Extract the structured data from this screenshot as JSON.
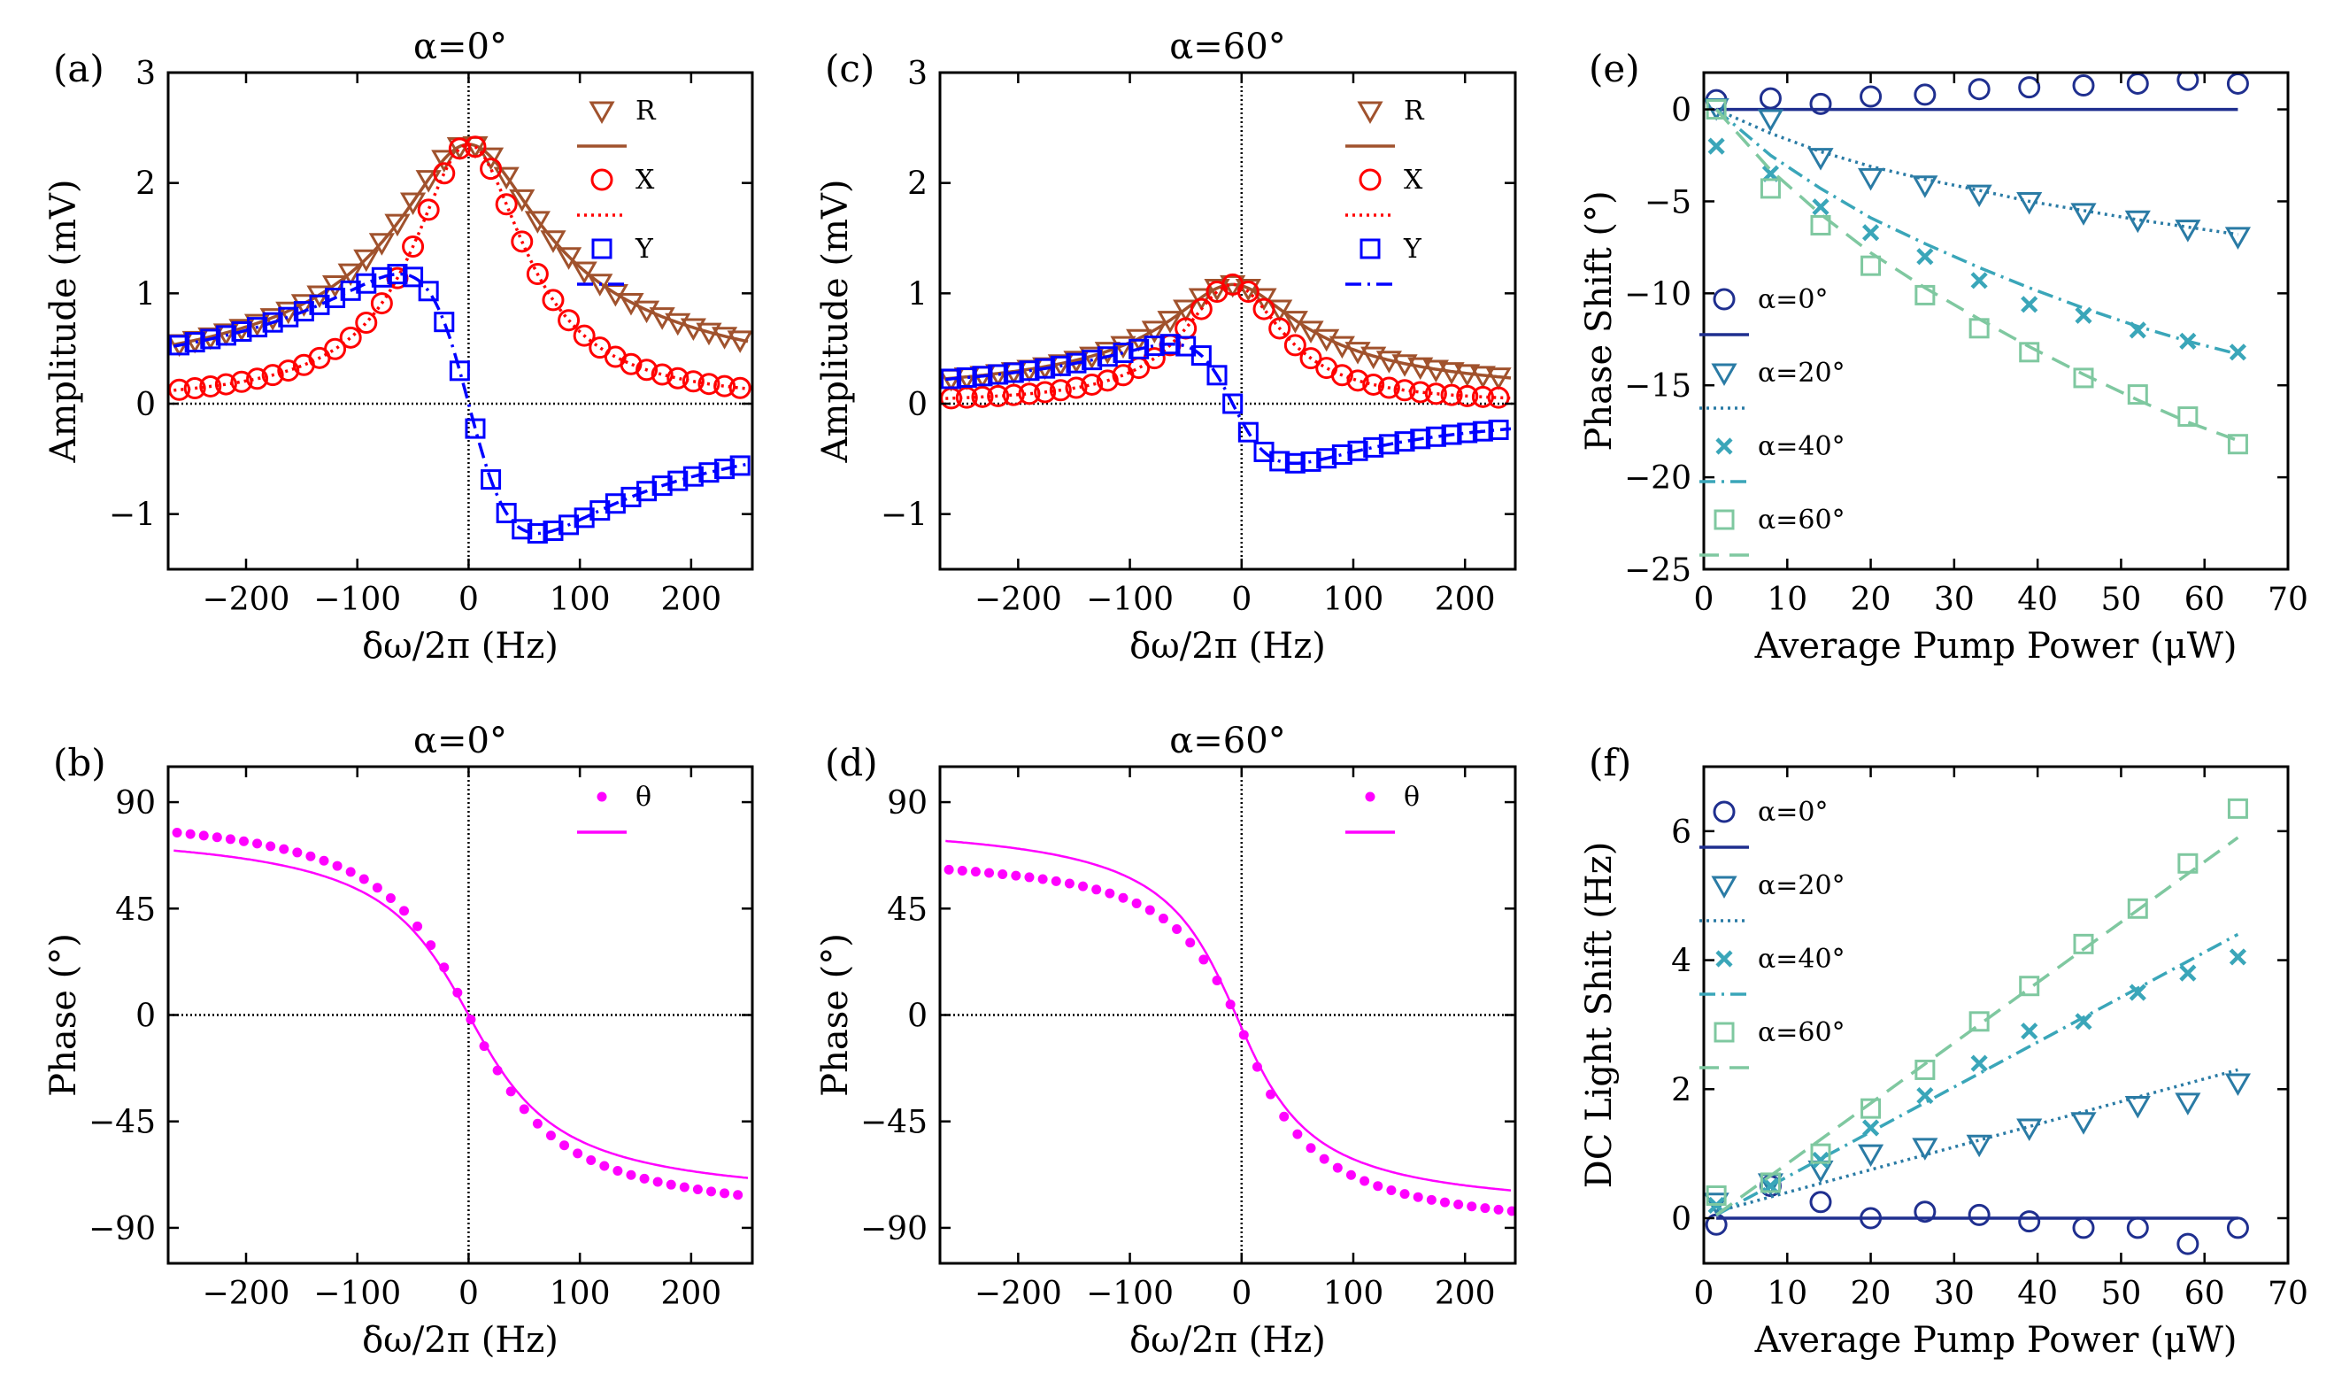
{
  "chart_data": [
    {
      "id": "a",
      "type": "scatter",
      "panel_label": "(a)",
      "title": "α=0°",
      "xlabel": "δω/2π (Hz)",
      "ylabel": "Amplitude (mV)",
      "xlim": [
        -270,
        255
      ],
      "ylim": [
        -1.5,
        3
      ],
      "xticks": [
        -200,
        -100,
        0,
        100,
        200
      ],
      "xticklabels": [
        "−200",
        "−100",
        "0",
        "100",
        "200"
      ],
      "yticks": [
        -1,
        0,
        1,
        2,
        3
      ],
      "yticklabels": [
        "−1",
        "0",
        "1",
        "2",
        "3"
      ],
      "zero_lines": {
        "x": 0,
        "y": 0
      },
      "series": [
        {
          "name": "R",
          "marker": "triangle-down",
          "line": "solid",
          "color": "#A0522D",
          "fit": "lorentz-R",
          "params": {
            "A": 2.35,
            "gamma": 62,
            "x0": 0
          }
        },
        {
          "name": "X",
          "marker": "circle",
          "line": "dotted",
          "color": "#FF0000",
          "fit": "lorentz-X",
          "params": {
            "A": 2.35,
            "gamma": 62,
            "x0": 0
          }
        },
        {
          "name": "Y",
          "marker": "square",
          "line": "dashdot",
          "color": "#0000FF",
          "fit": "lorentz-Y",
          "params": {
            "A": 2.35,
            "gamma": 62,
            "x0": 0
          }
        }
      ],
      "legend": [
        "R",
        "X",
        "Y"
      ],
      "legend_loc": "top-right"
    },
    {
      "id": "c",
      "type": "scatter",
      "panel_label": "(c)",
      "title": "α=60°",
      "xlabel": "δω/2π (Hz)",
      "ylabel": "Amplitude (mV)",
      "xlim": [
        -270,
        245
      ],
      "ylim": [
        -1.5,
        3
      ],
      "xticks": [
        -200,
        -100,
        0,
        100,
        200
      ],
      "xticklabels": [
        "−200",
        "−100",
        "0",
        "100",
        "200"
      ],
      "yticks": [
        -1,
        0,
        1,
        2,
        3
      ],
      "yticklabels": [
        "−1",
        "0",
        "1",
        "2",
        "3"
      ],
      "zero_lines": {
        "x": 0,
        "y": 0
      },
      "series": [
        {
          "name": "R",
          "marker": "triangle-down",
          "line": "solid",
          "color": "#A0522D",
          "fit": "lorentz-R",
          "params": {
            "A": 1.08,
            "gamma": 55,
            "x0": -8
          }
        },
        {
          "name": "X",
          "marker": "circle",
          "line": "dotted",
          "color": "#FF0000",
          "fit": "lorentz-X",
          "params": {
            "A": 1.08,
            "gamma": 55,
            "x0": -8
          }
        },
        {
          "name": "Y",
          "marker": "square",
          "line": "dashdot",
          "color": "#0000FF",
          "fit": "lorentz-Y",
          "params": {
            "A": 1.08,
            "gamma": 55,
            "x0": -8
          }
        }
      ],
      "legend": [
        "R",
        "X",
        "Y"
      ],
      "legend_loc": "top-right"
    },
    {
      "id": "b",
      "type": "scatter",
      "panel_label": "(b)",
      "title": "α=0°",
      "xlabel": "δω/2π (Hz)",
      "ylabel": "Phase (°)",
      "xlim": [
        -270,
        255
      ],
      "ylim": [
        -105,
        105
      ],
      "xticks": [
        -200,
        -100,
        0,
        100,
        200
      ],
      "xticklabels": [
        "−200",
        "−100",
        "0",
        "100",
        "200"
      ],
      "yticks": [
        -90,
        -45,
        0,
        45,
        90
      ],
      "yticklabels": [
        "−90",
        "−45",
        "0",
        "45",
        "90"
      ],
      "zero_lines": {
        "x": 0,
        "y": 0
      },
      "series": [
        {
          "name": "θ",
          "marker": "dot",
          "line": "solid",
          "color": "#FF00FF",
          "fit": "phase",
          "params": {
            "gamma": 60,
            "x0": 0,
            "data_scale": 1.0,
            "fit_scale": 0.9
          }
        }
      ],
      "legend": [
        "θ"
      ],
      "legend_loc": "top-right"
    },
    {
      "id": "d",
      "type": "scatter",
      "panel_label": "(d)",
      "title": "α=60°",
      "xlabel": "δω/2π (Hz)",
      "ylabel": "Phase (°)",
      "xlim": [
        -270,
        245
      ],
      "ylim": [
        -105,
        105
      ],
      "xticks": [
        -200,
        -100,
        0,
        100,
        200
      ],
      "xticklabels": [
        "−200",
        "−100",
        "0",
        "100",
        "200"
      ],
      "yticks": [
        -90,
        -45,
        0,
        45,
        90
      ],
      "yticklabels": [
        "−90",
        "−45",
        "0",
        "45",
        "90"
      ],
      "zero_lines": {
        "x": 0,
        "y": 0
      },
      "series": [
        {
          "name": "θ",
          "marker": "dot",
          "line": "solid",
          "color": "#FF00FF",
          "fit": "phase",
          "params": {
            "gamma": 50,
            "x0": -5,
            "data_scale": 1.0,
            "fit_scale": 0.93,
            "curve_left": 70,
            "curve_right": 95,
            "fit_right": 85
          }
        }
      ],
      "legend": [
        "θ"
      ],
      "legend_loc": "top-right"
    },
    {
      "id": "e",
      "type": "scatter",
      "panel_label": "(e)",
      "title": "",
      "xlabel": "Average Pump Power (μW)",
      "ylabel": "Phase Shift (°)",
      "xlim": [
        0,
        70
      ],
      "ylim": [
        -25,
        2
      ],
      "xticks": [
        0,
        10,
        20,
        30,
        40,
        50,
        60,
        70
      ],
      "xticklabels": [
        "0",
        "10",
        "20",
        "30",
        "40",
        "50",
        "60",
        "70"
      ],
      "yticks": [
        -25,
        -20,
        -15,
        -10,
        -5,
        0
      ],
      "yticklabels": [
        "−25",
        "−20",
        "−15",
        "−10",
        "−5",
        "0"
      ],
      "x": [
        1.5,
        8,
        14,
        20,
        26.5,
        33,
        39,
        45.5,
        52,
        58,
        64
      ],
      "series": [
        {
          "name": "α=0°",
          "marker": "circle",
          "line": "solid",
          "color": "#1F2F8F",
          "values": [
            0.5,
            0.6,
            0.3,
            0.7,
            0.8,
            1.1,
            1.2,
            1.3,
            1.4,
            1.6,
            1.4
          ],
          "fit": [
            [
              1.5,
              0
            ],
            [
              64,
              0
            ]
          ]
        },
        {
          "name": "α=20°",
          "marker": "triangle-down",
          "line": "dotted",
          "color": "#2A7BA5",
          "values": [
            0.1,
            -0.5,
            -2.6,
            -3.7,
            -4.1,
            -4.6,
            -5.0,
            -5.6,
            -6.0,
            -6.5,
            -6.9
          ],
          "fit": [
            [
              1.5,
              0
            ],
            [
              8,
              -1.3
            ],
            [
              14,
              -2.3
            ],
            [
              20,
              -3.1
            ],
            [
              26.5,
              -3.8
            ],
            [
              33,
              -4.4
            ],
            [
              39,
              -5.0
            ],
            [
              45.5,
              -5.5
            ],
            [
              52,
              -6.0
            ],
            [
              58,
              -6.4
            ],
            [
              64,
              -6.8
            ]
          ]
        },
        {
          "name": "α=40°",
          "marker": "x",
          "line": "dashdot",
          "color": "#3AA6B9",
          "values": [
            -2.0,
            -3.5,
            -5.3,
            -6.7,
            -8.0,
            -9.3,
            -10.6,
            -11.2,
            -12.0,
            -12.6,
            -13.2
          ],
          "fit": [
            [
              1.5,
              0
            ],
            [
              8,
              -2.5
            ],
            [
              14,
              -4.3
            ],
            [
              20,
              -5.9
            ],
            [
              26.5,
              -7.3
            ],
            [
              33,
              -8.6
            ],
            [
              39,
              -9.7
            ],
            [
              45.5,
              -10.8
            ],
            [
              52,
              -11.8
            ],
            [
              58,
              -12.6
            ],
            [
              64,
              -13.3
            ]
          ]
        },
        {
          "name": "α=60°",
          "marker": "square",
          "line": "dashed",
          "color": "#7FC8A0",
          "values": [
            0.0,
            -4.3,
            -6.3,
            -8.5,
            -10.1,
            -11.9,
            -13.2,
            -14.6,
            -15.5,
            -16.7,
            -18.2
          ],
          "fit": [
            [
              1.5,
              0
            ],
            [
              8,
              -3.3
            ],
            [
              14,
              -5.7
            ],
            [
              20,
              -7.8
            ],
            [
              26.5,
              -9.7
            ],
            [
              33,
              -11.4
            ],
            [
              39,
              -12.9
            ],
            [
              45.5,
              -14.4
            ],
            [
              52,
              -15.8
            ],
            [
              58,
              -17.0
            ],
            [
              64,
              -18.0
            ]
          ]
        }
      ],
      "legend": [
        "α=0°",
        "α=20°",
        "α=40°",
        "α=60°"
      ],
      "legend_loc": "bottom-left"
    },
    {
      "id": "f",
      "type": "scatter",
      "panel_label": "(f)",
      "title": "",
      "xlabel": "Average Pump Power (μW)",
      "ylabel": "DC Light Shift (Hz)",
      "xlim": [
        0,
        70
      ],
      "ylim": [
        -0.7,
        7
      ],
      "xticks": [
        0,
        10,
        20,
        30,
        40,
        50,
        60,
        70
      ],
      "xticklabels": [
        "0",
        "10",
        "20",
        "30",
        "40",
        "50",
        "60",
        "70"
      ],
      "yticks": [
        0,
        2,
        4,
        6
      ],
      "yticklabels": [
        "0",
        "2",
        "4",
        "6"
      ],
      "x": [
        1.5,
        8,
        14,
        20,
        26.5,
        33,
        39,
        45.5,
        52,
        58,
        64
      ],
      "series": [
        {
          "name": "α=0°",
          "marker": "circle",
          "line": "solid",
          "color": "#1F2F8F",
          "values": [
            -0.1,
            0.5,
            0.25,
            0.0,
            0.1,
            0.05,
            -0.05,
            -0.15,
            -0.15,
            -0.4,
            -0.15
          ],
          "fit": [
            [
              1.5,
              0
            ],
            [
              64,
              0
            ]
          ]
        },
        {
          "name": "α=20°",
          "marker": "triangle-down",
          "line": "dotted",
          "color": "#2A7BA5",
          "values": [
            0.25,
            0.55,
            0.75,
            1.0,
            1.1,
            1.15,
            1.4,
            1.5,
            1.75,
            1.8,
            2.1
          ],
          "fit": [
            [
              1.5,
              0.1
            ],
            [
              64,
              2.3
            ]
          ]
        },
        {
          "name": "α=40°",
          "marker": "x",
          "line": "dashdot",
          "color": "#3AA6B9",
          "values": [
            0.2,
            0.5,
            0.9,
            1.4,
            1.9,
            2.4,
            2.9,
            3.05,
            3.5,
            3.8,
            4.05
          ],
          "fit": [
            [
              1.5,
              0.05
            ],
            [
              64,
              4.4
            ]
          ]
        },
        {
          "name": "α=60°",
          "marker": "square",
          "line": "dashed",
          "color": "#7FC8A0",
          "values": [
            0.35,
            0.55,
            1.0,
            1.7,
            2.3,
            3.05,
            3.6,
            4.25,
            4.8,
            5.5,
            6.35
          ],
          "fit": [
            [
              1.5,
              0.05
            ],
            [
              64,
              5.9
            ]
          ]
        }
      ],
      "legend": [
        "α=0°",
        "α=20°",
        "α=40°",
        "α=60°"
      ],
      "legend_loc": "top-left"
    }
  ]
}
